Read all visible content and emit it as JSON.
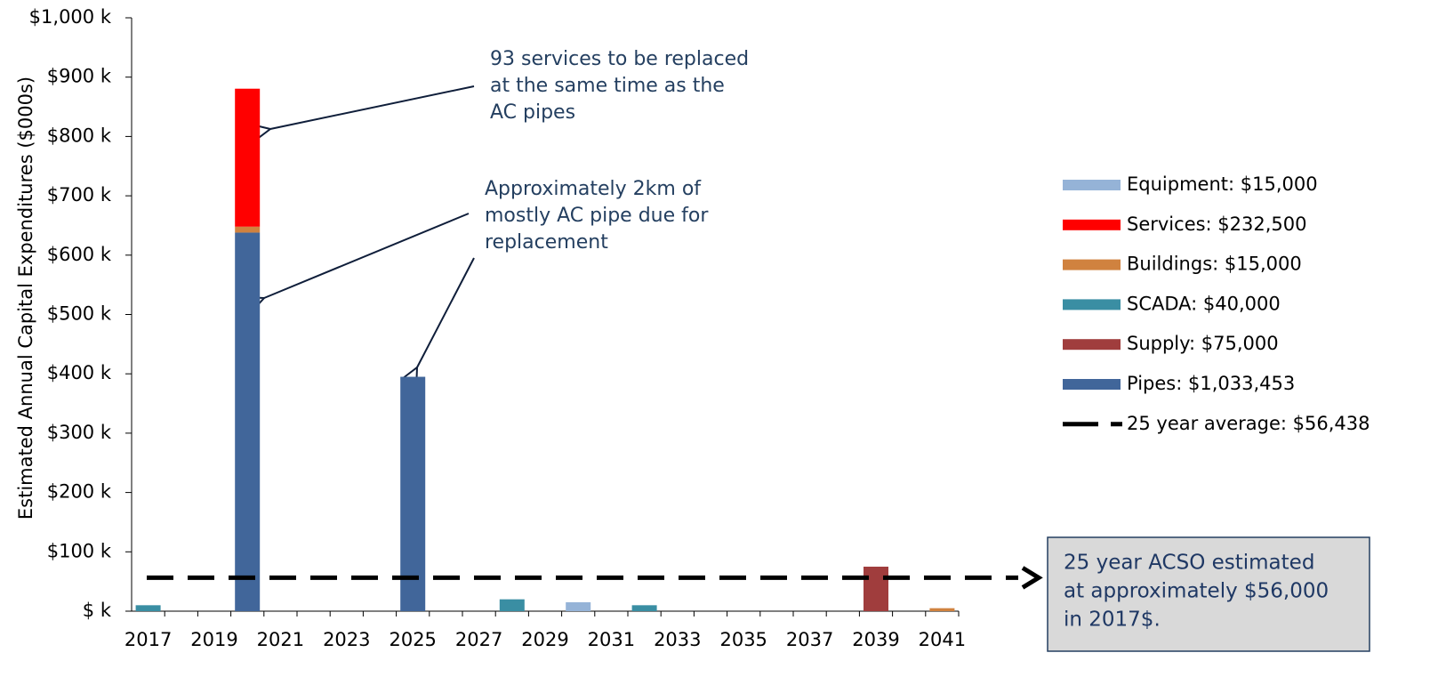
{
  "chart_data": {
    "type": "stacked-bar",
    "y_label": "Estimated Annual Capital Expenditures ($000s)",
    "categories": [
      "2017",
      null,
      "2019",
      null,
      "2021",
      null,
      "2023",
      null,
      "2025",
      null,
      "2027",
      null,
      "2029",
      null,
      "2031",
      null,
      "2033",
      null,
      "2035",
      null,
      "2037",
      null,
      "2039",
      null,
      "2041"
    ],
    "series": [
      {
        "name": "Pipes: $1,033,453",
        "color": "#41669a",
        "values": [
          0,
          0,
          0,
          638,
          0,
          0,
          0,
          0,
          395,
          0,
          0,
          0,
          0,
          0,
          0,
          0,
          0,
          0,
          0,
          0,
          0,
          0,
          0,
          0,
          0
        ]
      },
      {
        "name": "Supply: $75,000",
        "color": "#a03d3d",
        "values": [
          0,
          0,
          0,
          0,
          0,
          0,
          0,
          0,
          0,
          0,
          0,
          0,
          0,
          0,
          0,
          0,
          0,
          0,
          0,
          0,
          0,
          0,
          75,
          0,
          0
        ]
      },
      {
        "name": "SCADA: $40,000",
        "color": "#3a8ea3",
        "values": [
          10,
          0,
          0,
          0,
          0,
          0,
          0,
          0,
          0,
          0,
          0,
          20,
          0,
          0,
          0,
          10,
          0,
          0,
          0,
          0,
          0,
          0,
          0,
          0,
          0
        ]
      },
      {
        "name": "Buildings: $15,000",
        "color": "#d0823f",
        "values": [
          0,
          0,
          0,
          10,
          0,
          0,
          0,
          0,
          0,
          0,
          0,
          0,
          0,
          0,
          0,
          0,
          0,
          0,
          0,
          0,
          0,
          0,
          0,
          0,
          5
        ]
      },
      {
        "name": "Services: $232,500",
        "color": "#ff0000",
        "values": [
          0,
          0,
          0,
          232.5,
          0,
          0,
          0,
          0,
          0,
          0,
          0,
          0,
          0,
          0,
          0,
          0,
          0,
          0,
          0,
          0,
          0,
          0,
          0,
          0,
          0
        ]
      },
      {
        "name": "Equipment: $15,000",
        "color": "#95b3d7",
        "values": [
          0,
          0,
          0,
          0,
          0,
          0,
          0,
          0,
          0,
          0,
          0,
          0,
          0,
          15,
          0,
          0,
          0,
          0,
          0,
          0,
          0,
          0,
          0,
          0,
          0
        ]
      }
    ],
    "average": {
      "name": "25 year average: $56,438",
      "value": 56.438,
      "color": "#000000"
    },
    "ylim": [
      0,
      1000
    ],
    "yticks": [
      {
        "value": 0,
        "label": "$ k"
      },
      {
        "value": 100,
        "label": "$100 k"
      },
      {
        "value": 200,
        "label": "$200 k"
      },
      {
        "value": 300,
        "label": "$300 k"
      },
      {
        "value": 400,
        "label": "$400 k"
      },
      {
        "value": 500,
        "label": "$500 k"
      },
      {
        "value": 600,
        "label": "$600 k"
      },
      {
        "value": 700,
        "label": "$700 k"
      },
      {
        "value": 800,
        "label": "$800 k"
      },
      {
        "value": 900,
        "label": "$900 k"
      },
      {
        "value": 1000,
        "label": "$1,000 k"
      }
    ],
    "legend": "right",
    "annotations": [
      {
        "lines": [
          "93 services to be replaced",
          "at the same time as the",
          "AC pipes"
        ]
      },
      {
        "lines": [
          "Approximately 2km of",
          "mostly AC pipe due for",
          "replacement"
        ]
      }
    ],
    "callout": {
      "lines": [
        "25 year ACSO estimated",
        "at approximately $56,000",
        "in 2017$."
      ]
    }
  }
}
